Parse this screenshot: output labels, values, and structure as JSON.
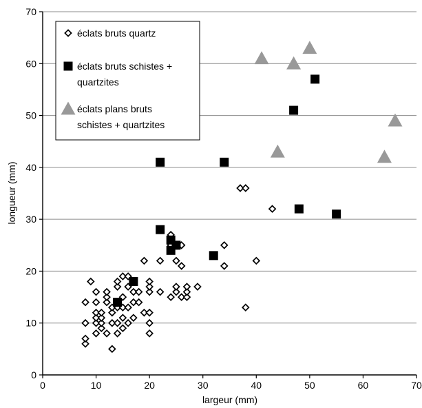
{
  "chart_data": {
    "type": "scatter",
    "title": "",
    "xlabel": "largeur (mm)",
    "ylabel": "longueur (mm)",
    "xlim": [
      0,
      70
    ],
    "ylim": [
      0,
      70
    ],
    "xticks": [
      0,
      10,
      20,
      30,
      40,
      50,
      60,
      70
    ],
    "yticks": [
      0,
      10,
      20,
      30,
      40,
      50,
      60,
      70
    ],
    "grid": "horizontal",
    "legend": "top-left",
    "series": [
      {
        "name": "éclats bruts quartz",
        "marker": "diamond-open",
        "color": "#000000",
        "points": [
          [
            8,
            6
          ],
          [
            8,
            7
          ],
          [
            8,
            10
          ],
          [
            8,
            14
          ],
          [
            9,
            18
          ],
          [
            10,
            8
          ],
          [
            10,
            10
          ],
          [
            10,
            11
          ],
          [
            10,
            12
          ],
          [
            10,
            14
          ],
          [
            10,
            16
          ],
          [
            11,
            9
          ],
          [
            11,
            10
          ],
          [
            11,
            11
          ],
          [
            11,
            12
          ],
          [
            12,
            8
          ],
          [
            12,
            14
          ],
          [
            12,
            15
          ],
          [
            12,
            16
          ],
          [
            13,
            5
          ],
          [
            13,
            10
          ],
          [
            13,
            12
          ],
          [
            13,
            13
          ],
          [
            14,
            8
          ],
          [
            14,
            10
          ],
          [
            14,
            13
          ],
          [
            14,
            14
          ],
          [
            14,
            17
          ],
          [
            14,
            18
          ],
          [
            15,
            9
          ],
          [
            15,
            11
          ],
          [
            15,
            13
          ],
          [
            15,
            15
          ],
          [
            15,
            19
          ],
          [
            16,
            10
          ],
          [
            16,
            13
          ],
          [
            16,
            17
          ],
          [
            16,
            19
          ],
          [
            17,
            11
          ],
          [
            17,
            14
          ],
          [
            17,
            16
          ],
          [
            18,
            14
          ],
          [
            18,
            16
          ],
          [
            19,
            22
          ],
          [
            19,
            12
          ],
          [
            20,
            8
          ],
          [
            20,
            10
          ],
          [
            20,
            12
          ],
          [
            20,
            16
          ],
          [
            20,
            17
          ],
          [
            20,
            18
          ],
          [
            22,
            16
          ],
          [
            22,
            22
          ],
          [
            24,
            15
          ],
          [
            24,
            25
          ],
          [
            24,
            27
          ],
          [
            25,
            16
          ],
          [
            25,
            17
          ],
          [
            25,
            22
          ],
          [
            26,
            15
          ],
          [
            26,
            21
          ],
          [
            26,
            25
          ],
          [
            27,
            15
          ],
          [
            27,
            16
          ],
          [
            27,
            17
          ],
          [
            29,
            17
          ],
          [
            34,
            21
          ],
          [
            34,
            25
          ],
          [
            37,
            36
          ],
          [
            38,
            36
          ],
          [
            38,
            13
          ],
          [
            40,
            22
          ],
          [
            43,
            32
          ]
        ]
      },
      {
        "name": "éclats bruts schistes + quartzites",
        "marker": "square-filled",
        "color": "#000000",
        "points": [
          [
            14,
            14
          ],
          [
            17,
            18
          ],
          [
            22,
            28
          ],
          [
            22,
            41
          ],
          [
            24,
            24
          ],
          [
            24,
            26
          ],
          [
            25,
            25
          ],
          [
            32,
            23
          ],
          [
            34,
            41
          ],
          [
            47,
            51
          ],
          [
            48,
            32
          ],
          [
            51,
            57
          ],
          [
            55,
            31
          ]
        ]
      },
      {
        "name": "éclats plans bruts schistes + quartzites",
        "marker": "triangle-filled",
        "color": "#999999",
        "points": [
          [
            41,
            61
          ],
          [
            44,
            43
          ],
          [
            47,
            60
          ],
          [
            50,
            63
          ],
          [
            64,
            42
          ],
          [
            66,
            49
          ]
        ]
      }
    ],
    "legend_lines": [
      [
        "éclats bruts quartz"
      ],
      [
        "éclats bruts schistes +",
        "quartzites"
      ],
      [
        "éclats plans bruts",
        "schistes + quartzites"
      ]
    ]
  }
}
